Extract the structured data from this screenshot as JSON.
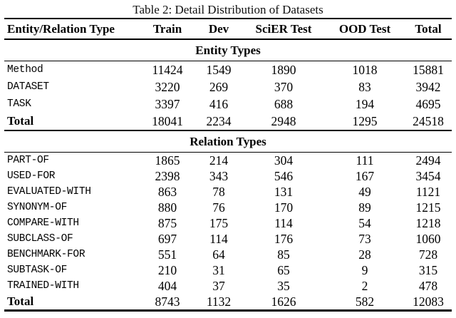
{
  "title": "Table 2: Detail Distribution of Datasets",
  "colors": {
    "text": "#000000",
    "background": "#ffffff",
    "rule": "#000000"
  },
  "table": {
    "columns": [
      "Entity/Relation Type",
      "Train",
      "Dev",
      "SciER Test",
      "OOD Test",
      "Total"
    ],
    "sections": [
      {
        "header": "Entity Types",
        "rows": [
          {
            "label": "Method",
            "style": "mono",
            "values": [
              11424,
              1549,
              1890,
              1018,
              15881
            ]
          },
          {
            "label": "DATASET",
            "style": "mono",
            "values": [
              3220,
              269,
              370,
              83,
              3942
            ]
          },
          {
            "label": "TASK",
            "style": "mono",
            "values": [
              3397,
              416,
              688,
              194,
              4695
            ]
          },
          {
            "label": "Total",
            "style": "bold",
            "values": [
              18041,
              2234,
              2948,
              1295,
              24518
            ]
          }
        ]
      },
      {
        "header": "Relation Types",
        "rows": [
          {
            "label": "PART-OF",
            "style": "mono",
            "values": [
              1865,
              214,
              304,
              111,
              2494
            ]
          },
          {
            "label": "USED-FOR",
            "style": "mono",
            "values": [
              2398,
              343,
              546,
              167,
              3454
            ]
          },
          {
            "label": "EVALUATED-WITH",
            "style": "mono",
            "values": [
              863,
              78,
              131,
              49,
              1121
            ]
          },
          {
            "label": "SYNONYM-OF",
            "style": "mono",
            "values": [
              880,
              76,
              170,
              89,
              1215
            ]
          },
          {
            "label": "COMPARE-WITH",
            "style": "mono",
            "values": [
              875,
              175,
              114,
              54,
              1218
            ]
          },
          {
            "label": "SUBCLASS-OF",
            "style": "mono",
            "values": [
              697,
              114,
              176,
              73,
              1060
            ]
          },
          {
            "label": "BENCHMARK-FOR",
            "style": "mono",
            "values": [
              551,
              64,
              85,
              28,
              728
            ]
          },
          {
            "label": "SUBTASK-OF",
            "style": "mono",
            "values": [
              210,
              31,
              65,
              9,
              315
            ]
          },
          {
            "label": "TRAINED-WITH",
            "style": "mono",
            "values": [
              404,
              37,
              35,
              2,
              478
            ]
          },
          {
            "label": "Total",
            "style": "bold",
            "values": [
              8743,
              1132,
              1626,
              582,
              12083
            ]
          }
        ]
      }
    ]
  }
}
